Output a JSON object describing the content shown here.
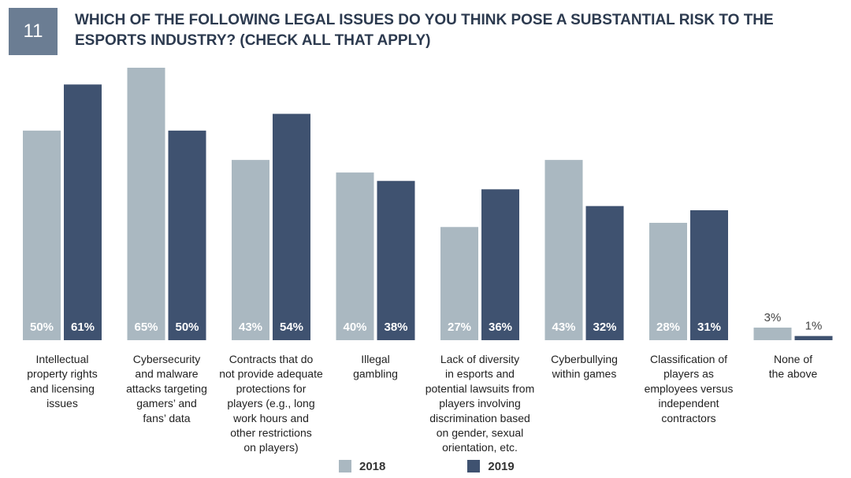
{
  "header": {
    "number": "11",
    "title": "WHICH OF THE FOLLOWING LEGAL ISSUES DO YOU THINK POSE A SUBSTANTIAL RISK TO THE ESPORTS INDUSTRY? (CHECK ALL THAT APPLY)"
  },
  "colors": {
    "y2018": "#aab8c1",
    "y2019": "#3f5270",
    "badge": "#6b7d93"
  },
  "chart_data": {
    "type": "bar",
    "title": "WHICH OF THE FOLLOWING LEGAL ISSUES DO YOU THINK POSE A SUBSTANTIAL RISK TO THE ESPORTS INDUSTRY? (CHECK ALL THAT APPLY)",
    "categories": [
      [
        "Intellectual",
        "property rights",
        "and licensing",
        "issues"
      ],
      [
        "Cybersecurity",
        "and malware",
        "attacks targeting",
        "gamers’ and",
        "fans’ data"
      ],
      [
        "Contracts that do",
        "not provide adequate",
        "protections for",
        "players (e.g., long",
        "work hours and",
        "other restrictions",
        "on players)"
      ],
      [
        "Illegal",
        "gambling"
      ],
      [
        "Lack of diversity",
        "in esports and",
        "potential lawsuits from",
        "players involving",
        "discrimination based",
        "on gender, sexual",
        "orientation, etc."
      ],
      [
        "Cyberbullying",
        "within games"
      ],
      [
        "Classification of",
        "players as",
        "employees versus",
        "independent",
        "contractors"
      ],
      [
        "None of",
        "the above"
      ]
    ],
    "series": [
      {
        "name": "2018",
        "values": [
          50,
          65,
          43,
          40,
          27,
          43,
          28,
          3
        ]
      },
      {
        "name": "2019",
        "values": [
          61,
          50,
          54,
          38,
          36,
          32,
          31,
          1
        ]
      }
    ],
    "value_suffix": "%",
    "ylim": [
      0,
      65
    ],
    "grid": false,
    "legend": "bottom-center"
  }
}
